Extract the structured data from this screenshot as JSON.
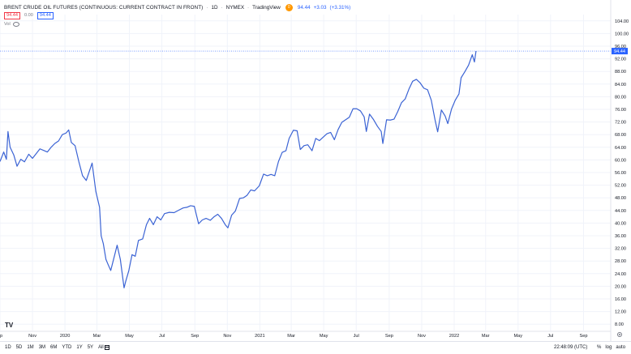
{
  "header": {
    "title": "BRENT CRUDE OIL FUTURES (CONTINUOUS: CURRENT CONTRACT IN FRONT)",
    "interval": "1D",
    "exchange": "NYMEX",
    "source": "TradingView",
    "badge": "0",
    "last_price": "94.44",
    "change": "+3.03",
    "change_pct": "(+3.31%)"
  },
  "order_boxes": {
    "sell": "94.44",
    "spread": "0.00",
    "buy": "94.44"
  },
  "indicator": {
    "label": "Vol"
  },
  "logo": {
    "text": "TV"
  },
  "bottom_bar": {
    "ranges": [
      "1D",
      "5D",
      "1M",
      "3M",
      "6M",
      "YTD",
      "1Y",
      "5Y",
      "All"
    ],
    "time": "22:48:09 (UTC)",
    "options": [
      "%",
      "log",
      "auto"
    ]
  },
  "colors": {
    "line": "#3b63d4",
    "last_price_tag": "#2962ff",
    "axis_text": "#131722",
    "grid": "#f0f3fa"
  },
  "chart_data": {
    "type": "line",
    "title": "BRENT CRUDE OIL FUTURES (CONTINUOUS: CURRENT CONTRACT IN FRONT)",
    "xlabel": "",
    "ylabel": "",
    "grid": true,
    "last_value": 94.44,
    "last_value_label": "94.44",
    "ylim": [
      6,
      106
    ],
    "y_ticks": [
      104.0,
      100.0,
      96.0,
      92.0,
      88.0,
      84.0,
      80.0,
      76.0,
      72.0,
      68.0,
      64.0,
      60.0,
      56.0,
      52.0,
      48.0,
      44.0,
      40.0,
      36.0,
      32.0,
      28.0,
      24.0,
      20.0,
      16.0,
      12.0,
      8.0
    ],
    "x_ticks": [
      "ep",
      "Nov",
      "2020",
      "Mar",
      "May",
      "Jul",
      "Sep",
      "Nov",
      "2021",
      "Mar",
      "May",
      "Jul",
      "Sep",
      "Nov",
      "2022",
      "Mar",
      "May",
      "Jul",
      "Sep"
    ],
    "x_tick_dates": [
      "2019-09-01",
      "2019-11-01",
      "2020-01-01",
      "2020-03-01",
      "2020-05-01",
      "2020-07-01",
      "2020-09-01",
      "2020-11-01",
      "2021-01-01",
      "2021-03-01",
      "2021-05-01",
      "2021-07-01",
      "2021-09-01",
      "2021-11-01",
      "2022-01-01",
      "2022-03-01",
      "2022-05-01",
      "2022-07-01",
      "2022-09-01"
    ],
    "xlim": [
      "2019-09-01",
      "2022-10-22"
    ],
    "series": [
      {
        "points": [
          [
            "2019-09-01",
            59.5
          ],
          [
            "2019-09-08",
            62.5
          ],
          [
            "2019-09-13",
            60.2
          ],
          [
            "2019-09-16",
            69.0
          ],
          [
            "2019-09-20",
            64.0
          ],
          [
            "2019-09-27",
            61.5
          ],
          [
            "2019-10-03",
            58.0
          ],
          [
            "2019-10-10",
            60.2
          ],
          [
            "2019-10-17",
            59.4
          ],
          [
            "2019-10-25",
            61.8
          ],
          [
            "2019-11-01",
            60.5
          ],
          [
            "2019-11-08",
            62.0
          ],
          [
            "2019-11-15",
            63.5
          ],
          [
            "2019-11-22",
            63.0
          ],
          [
            "2019-11-29",
            62.5
          ],
          [
            "2019-12-06",
            64.0
          ],
          [
            "2019-12-13",
            65.2
          ],
          [
            "2019-12-20",
            66.0
          ],
          [
            "2019-12-27",
            68.0
          ],
          [
            "2020-01-03",
            68.5
          ],
          [
            "2020-01-08",
            69.5
          ],
          [
            "2020-01-13",
            65.5
          ],
          [
            "2020-01-20",
            64.5
          ],
          [
            "2020-01-27",
            59.5
          ],
          [
            "2020-02-03",
            55.0
          ],
          [
            "2020-02-10",
            53.5
          ],
          [
            "2020-02-17",
            57.0
          ],
          [
            "2020-02-21",
            59.0
          ],
          [
            "2020-02-28",
            50.0
          ],
          [
            "2020-03-06",
            45.0
          ],
          [
            "2020-03-09",
            36.0
          ],
          [
            "2020-03-13",
            33.5
          ],
          [
            "2020-03-18",
            28.5
          ],
          [
            "2020-03-23",
            26.5
          ],
          [
            "2020-03-27",
            25.0
          ],
          [
            "2020-04-02",
            29.0
          ],
          [
            "2020-04-08",
            33.0
          ],
          [
            "2020-04-14",
            28.5
          ],
          [
            "2020-04-21",
            19.5
          ],
          [
            "2020-04-24",
            21.5
          ],
          [
            "2020-04-30",
            25.0
          ],
          [
            "2020-05-06",
            30.0
          ],
          [
            "2020-05-12",
            29.5
          ],
          [
            "2020-05-18",
            34.5
          ],
          [
            "2020-05-26",
            35.0
          ],
          [
            "2020-06-02",
            39.5
          ],
          [
            "2020-06-08",
            41.5
          ],
          [
            "2020-06-15",
            39.5
          ],
          [
            "2020-06-22",
            42.0
          ],
          [
            "2020-06-29",
            41.0
          ],
          [
            "2020-07-06",
            43.0
          ],
          [
            "2020-07-15",
            43.4
          ],
          [
            "2020-07-24",
            43.3
          ],
          [
            "2020-08-03",
            44.2
          ],
          [
            "2020-08-10",
            44.8
          ],
          [
            "2020-08-17",
            45.0
          ],
          [
            "2020-08-24",
            45.5
          ],
          [
            "2020-08-31",
            45.3
          ],
          [
            "2020-09-04",
            42.5
          ],
          [
            "2020-09-08",
            39.8
          ],
          [
            "2020-09-15",
            41.0
          ],
          [
            "2020-09-22",
            41.5
          ],
          [
            "2020-09-30",
            40.9
          ],
          [
            "2020-10-07",
            42.0
          ],
          [
            "2020-10-14",
            42.8
          ],
          [
            "2020-10-21",
            41.5
          ],
          [
            "2020-10-28",
            39.5
          ],
          [
            "2020-11-02",
            38.5
          ],
          [
            "2020-11-09",
            42.5
          ],
          [
            "2020-11-16",
            43.8
          ],
          [
            "2020-11-24",
            47.8
          ],
          [
            "2020-12-01",
            48.0
          ],
          [
            "2020-12-08",
            48.8
          ],
          [
            "2020-12-15",
            50.5
          ],
          [
            "2020-12-22",
            50.2
          ],
          [
            "2020-12-31",
            51.8
          ],
          [
            "2021-01-08",
            55.5
          ],
          [
            "2021-01-15",
            55.0
          ],
          [
            "2021-01-22",
            55.4
          ],
          [
            "2021-01-29",
            55.0
          ],
          [
            "2021-02-05",
            59.5
          ],
          [
            "2021-02-12",
            62.4
          ],
          [
            "2021-02-19",
            62.9
          ],
          [
            "2021-02-25",
            66.8
          ],
          [
            "2021-03-05",
            69.4
          ],
          [
            "2021-03-12",
            69.2
          ],
          [
            "2021-03-18",
            63.3
          ],
          [
            "2021-03-25",
            64.5
          ],
          [
            "2021-04-01",
            64.8
          ],
          [
            "2021-04-09",
            62.9
          ],
          [
            "2021-04-16",
            66.8
          ],
          [
            "2021-04-23",
            66.1
          ],
          [
            "2021-04-30",
            67.2
          ],
          [
            "2021-05-07",
            68.3
          ],
          [
            "2021-05-14",
            68.7
          ],
          [
            "2021-05-21",
            66.4
          ],
          [
            "2021-05-28",
            69.6
          ],
          [
            "2021-06-04",
            71.9
          ],
          [
            "2021-06-11",
            72.7
          ],
          [
            "2021-06-18",
            73.5
          ],
          [
            "2021-06-25",
            76.2
          ],
          [
            "2021-07-02",
            76.2
          ],
          [
            "2021-07-09",
            75.5
          ],
          [
            "2021-07-16",
            73.6
          ],
          [
            "2021-07-20",
            69.0
          ],
          [
            "2021-07-26",
            74.5
          ],
          [
            "2021-08-02",
            72.9
          ],
          [
            "2021-08-10",
            70.6
          ],
          [
            "2021-08-17",
            69.0
          ],
          [
            "2021-08-20",
            65.2
          ],
          [
            "2021-08-27",
            72.7
          ],
          [
            "2021-09-03",
            72.6
          ],
          [
            "2021-09-10",
            72.9
          ],
          [
            "2021-09-17",
            75.3
          ],
          [
            "2021-09-24",
            78.1
          ],
          [
            "2021-10-01",
            79.3
          ],
          [
            "2021-10-08",
            82.4
          ],
          [
            "2021-10-15",
            84.9
          ],
          [
            "2021-10-22",
            85.5
          ],
          [
            "2021-10-29",
            84.4
          ],
          [
            "2021-11-05",
            82.7
          ],
          [
            "2021-11-12",
            82.2
          ],
          [
            "2021-11-19",
            78.9
          ],
          [
            "2021-11-26",
            72.7
          ],
          [
            "2021-12-01",
            68.9
          ],
          [
            "2021-12-08",
            75.8
          ],
          [
            "2021-12-15",
            73.9
          ],
          [
            "2021-12-20",
            71.5
          ],
          [
            "2021-12-27",
            76.1
          ],
          [
            "2022-01-03",
            78.9
          ],
          [
            "2022-01-10",
            80.9
          ],
          [
            "2022-01-14",
            86.0
          ],
          [
            "2022-01-21",
            87.9
          ],
          [
            "2022-01-28",
            90.0
          ],
          [
            "2022-02-04",
            93.3
          ],
          [
            "2022-02-08",
            91.0
          ],
          [
            "2022-02-11",
            94.44
          ]
        ]
      }
    ]
  }
}
